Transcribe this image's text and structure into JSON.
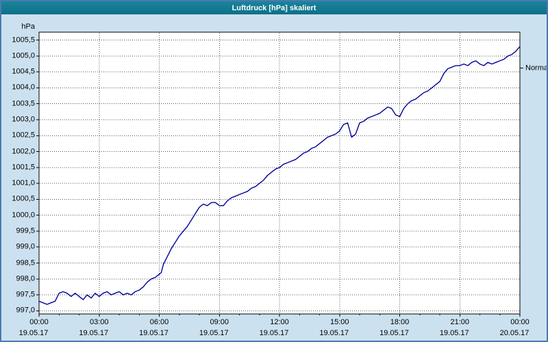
{
  "window": {
    "title": "Luftdruck [hPa] skaliert"
  },
  "colors": {
    "window_bg": "#cce1f0",
    "frame": "#4a7aad",
    "titlebar_top": "#1a849c",
    "titlebar_bottom": "#0e7088",
    "plot_bg": "#ffffff",
    "grid": "#4d4d4d",
    "axis": "#000000",
    "text": "#000000",
    "line": "#000099"
  },
  "chart_data": {
    "type": "line",
    "title": "Luftdruck [hPa] skaliert",
    "ylabel": "hPa",
    "xlabel": "",
    "xlim": [
      0,
      24
    ],
    "ylim": [
      996.9,
      1005.75
    ],
    "grid": true,
    "legend_position": "none",
    "normal": {
      "label": "Normal",
      "value": 1004.62
    },
    "yticks": [
      {
        "v": 997.0,
        "label": "997,0"
      },
      {
        "v": 997.5,
        "label": "997,5"
      },
      {
        "v": 998.0,
        "label": "998,0"
      },
      {
        "v": 998.5,
        "label": "998,5"
      },
      {
        "v": 999.0,
        "label": "999,0"
      },
      {
        "v": 999.5,
        "label": "999,5"
      },
      {
        "v": 1000.0,
        "label": "1000,0"
      },
      {
        "v": 1000.5,
        "label": "1000,5"
      },
      {
        "v": 1001.0,
        "label": "1001,0"
      },
      {
        "v": 1001.5,
        "label": "1001,5"
      },
      {
        "v": 1002.0,
        "label": "1002,0"
      },
      {
        "v": 1002.5,
        "label": "1002,5"
      },
      {
        "v": 1003.0,
        "label": "1003,0"
      },
      {
        "v": 1003.5,
        "label": "1003,5"
      },
      {
        "v": 1004.0,
        "label": "1004,0"
      },
      {
        "v": 1004.5,
        "label": "1004,5"
      },
      {
        "v": 1005.0,
        "label": "1005,0"
      },
      {
        "v": 1005.5,
        "label": "1005,5"
      }
    ],
    "xticks": [
      {
        "h": 0,
        "time": "00:00",
        "date": "19.05.17"
      },
      {
        "h": 3,
        "time": "03:00",
        "date": "19.05.17"
      },
      {
        "h": 6,
        "time": "06:00",
        "date": "19.05.17"
      },
      {
        "h": 9,
        "time": "09:00",
        "date": "19.05.17"
      },
      {
        "h": 12,
        "time": "12:00",
        "date": "19.05.17"
      },
      {
        "h": 15,
        "time": "15:00",
        "date": "19.05.17"
      },
      {
        "h": 18,
        "time": "18:00",
        "date": "19.05.17"
      },
      {
        "h": 21,
        "time": "21:00",
        "date": "19.05.17"
      },
      {
        "h": 24,
        "time": "00:00",
        "date": "20.05.17"
      }
    ],
    "series": [
      {
        "name": "Luftdruck",
        "color": "#000099",
        "points": [
          [
            0.0,
            997.3
          ],
          [
            0.2,
            997.25
          ],
          [
            0.4,
            997.2
          ],
          [
            0.6,
            997.25
          ],
          [
            0.8,
            997.3
          ],
          [
            1.0,
            997.55
          ],
          [
            1.2,
            997.6
          ],
          [
            1.4,
            997.55
          ],
          [
            1.6,
            997.45
          ],
          [
            1.8,
            997.55
          ],
          [
            2.0,
            997.45
          ],
          [
            2.2,
            997.35
          ],
          [
            2.4,
            997.5
          ],
          [
            2.6,
            997.4
          ],
          [
            2.8,
            997.55
          ],
          [
            3.0,
            997.45
          ],
          [
            3.2,
            997.55
          ],
          [
            3.4,
            997.6
          ],
          [
            3.6,
            997.5
          ],
          [
            3.8,
            997.55
          ],
          [
            4.0,
            997.6
          ],
          [
            4.2,
            997.5
          ],
          [
            4.4,
            997.55
          ],
          [
            4.6,
            997.5
          ],
          [
            4.8,
            997.6
          ],
          [
            5.0,
            997.65
          ],
          [
            5.2,
            997.75
          ],
          [
            5.4,
            997.9
          ],
          [
            5.6,
            998.0
          ],
          [
            5.8,
            998.05
          ],
          [
            6.0,
            998.15
          ],
          [
            6.1,
            998.2
          ],
          [
            6.2,
            998.45
          ],
          [
            6.4,
            998.7
          ],
          [
            6.6,
            998.95
          ],
          [
            6.8,
            999.15
          ],
          [
            7.0,
            999.35
          ],
          [
            7.2,
            999.5
          ],
          [
            7.4,
            999.65
          ],
          [
            7.6,
            999.85
          ],
          [
            7.8,
            1000.05
          ],
          [
            8.0,
            1000.25
          ],
          [
            8.2,
            1000.35
          ],
          [
            8.4,
            1000.3
          ],
          [
            8.6,
            1000.4
          ],
          [
            8.8,
            1000.4
          ],
          [
            9.0,
            1000.3
          ],
          [
            9.2,
            1000.3
          ],
          [
            9.4,
            1000.45
          ],
          [
            9.6,
            1000.55
          ],
          [
            9.8,
            1000.6
          ],
          [
            10.0,
            1000.65
          ],
          [
            10.2,
            1000.7
          ],
          [
            10.4,
            1000.75
          ],
          [
            10.6,
            1000.85
          ],
          [
            10.8,
            1000.9
          ],
          [
            11.0,
            1001.0
          ],
          [
            11.2,
            1001.1
          ],
          [
            11.4,
            1001.25
          ],
          [
            11.6,
            1001.35
          ],
          [
            11.8,
            1001.45
          ],
          [
            12.0,
            1001.5
          ],
          [
            12.2,
            1001.6
          ],
          [
            12.4,
            1001.65
          ],
          [
            12.6,
            1001.7
          ],
          [
            12.8,
            1001.75
          ],
          [
            13.0,
            1001.85
          ],
          [
            13.2,
            1001.95
          ],
          [
            13.4,
            1002.0
          ],
          [
            13.6,
            1002.1
          ],
          [
            13.8,
            1002.15
          ],
          [
            14.0,
            1002.25
          ],
          [
            14.2,
            1002.35
          ],
          [
            14.4,
            1002.45
          ],
          [
            14.6,
            1002.5
          ],
          [
            14.8,
            1002.55
          ],
          [
            15.0,
            1002.65
          ],
          [
            15.2,
            1002.85
          ],
          [
            15.4,
            1002.9
          ],
          [
            15.6,
            1002.45
          ],
          [
            15.8,
            1002.55
          ],
          [
            16.0,
            1002.9
          ],
          [
            16.2,
            1002.95
          ],
          [
            16.4,
            1003.05
          ],
          [
            16.6,
            1003.1
          ],
          [
            16.8,
            1003.15
          ],
          [
            17.0,
            1003.2
          ],
          [
            17.2,
            1003.3
          ],
          [
            17.4,
            1003.4
          ],
          [
            17.6,
            1003.35
          ],
          [
            17.8,
            1003.15
          ],
          [
            18.0,
            1003.1
          ],
          [
            18.2,
            1003.35
          ],
          [
            18.4,
            1003.5
          ],
          [
            18.6,
            1003.6
          ],
          [
            18.8,
            1003.65
          ],
          [
            19.0,
            1003.75
          ],
          [
            19.2,
            1003.85
          ],
          [
            19.4,
            1003.9
          ],
          [
            19.6,
            1004.0
          ],
          [
            19.8,
            1004.1
          ],
          [
            20.0,
            1004.2
          ],
          [
            20.2,
            1004.45
          ],
          [
            20.4,
            1004.6
          ],
          [
            20.6,
            1004.65
          ],
          [
            20.8,
            1004.7
          ],
          [
            21.0,
            1004.7
          ],
          [
            21.2,
            1004.75
          ],
          [
            21.4,
            1004.7
          ],
          [
            21.6,
            1004.8
          ],
          [
            21.8,
            1004.85
          ],
          [
            22.0,
            1004.75
          ],
          [
            22.2,
            1004.7
          ],
          [
            22.4,
            1004.8
          ],
          [
            22.6,
            1004.75
          ],
          [
            22.8,
            1004.8
          ],
          [
            23.0,
            1004.85
          ],
          [
            23.2,
            1004.9
          ],
          [
            23.4,
            1005.0
          ],
          [
            23.6,
            1005.05
          ],
          [
            23.8,
            1005.15
          ],
          [
            24.0,
            1005.3
          ]
        ]
      }
    ]
  }
}
